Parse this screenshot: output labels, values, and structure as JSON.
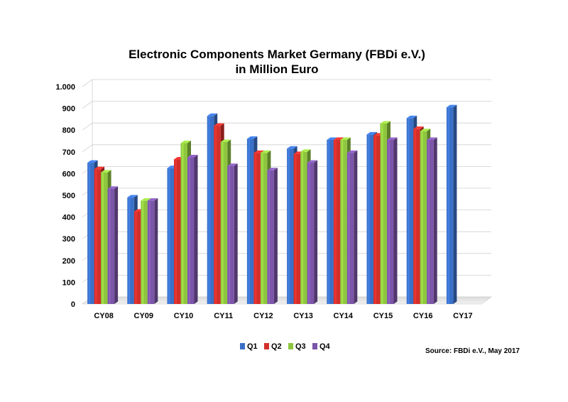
{
  "chart_data": {
    "type": "bar",
    "title_line1": "Electronic Components Market Germany (FBDi e.V.)",
    "title_line2": "in Million Euro",
    "xlabel": "",
    "ylabel": "",
    "ylim": [
      0,
      1000
    ],
    "yticks": [
      0,
      100,
      200,
      300,
      400,
      500,
      600,
      700,
      800,
      900,
      1000
    ],
    "ytick_labels": [
      "0",
      "100",
      "200",
      "300",
      "400",
      "500",
      "600",
      "700",
      "800",
      "900",
      "1.000"
    ],
    "grid": true,
    "legend_position": "bottom-center",
    "categories": [
      "CY08",
      "CY09",
      "CY10",
      "CY11",
      "CY12",
      "CY13",
      "CY14",
      "CY15",
      "CY16",
      "CY17"
    ],
    "series": [
      {
        "name": "Q1",
        "color": "#3a70c8",
        "values": [
          650,
          490,
          625,
          865,
          760,
          715,
          755,
          780,
          855,
          905
        ]
      },
      {
        "name": "Q2",
        "color": "#d22f2a",
        "values": [
          620,
          425,
          665,
          820,
          695,
          690,
          755,
          775,
          805,
          null
        ]
      },
      {
        "name": "Q3",
        "color": "#8ec63f",
        "values": [
          605,
          475,
          740,
          745,
          695,
          700,
          755,
          830,
          795,
          null
        ]
      },
      {
        "name": "Q4",
        "color": "#7b55a8",
        "values": [
          530,
          475,
          675,
          635,
          615,
          650,
          695,
          755,
          755,
          null
        ]
      }
    ]
  },
  "source": "Source: FBDi e.V., May 2017"
}
